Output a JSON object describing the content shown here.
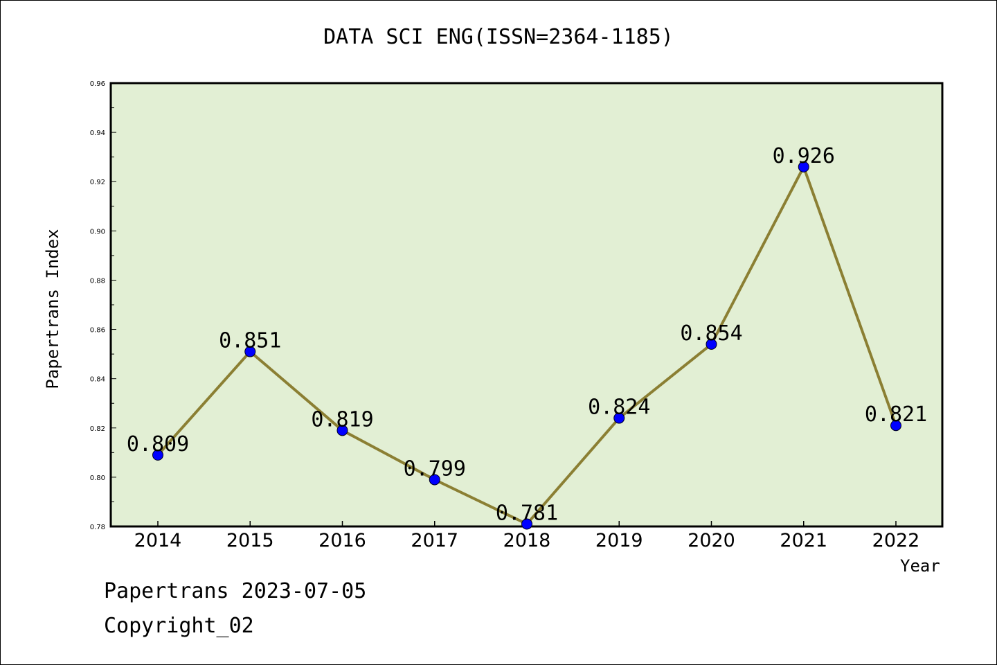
{
  "chart_data": {
    "type": "line",
    "title": "DATA SCI ENG(ISSN=2364-1185)",
    "xlabel": "Year",
    "ylabel": "Papertrans Index",
    "categories": [
      "2014",
      "2015",
      "2016",
      "2017",
      "2018",
      "2019",
      "2020",
      "2021",
      "2022"
    ],
    "series": [
      {
        "values": [
          0.809,
          0.851,
          0.819,
          0.799,
          0.781,
          0.824,
          0.854,
          0.926,
          0.821
        ],
        "data_labels": [
          "0.809",
          "0.851",
          "0.819",
          "0.799",
          "0.781",
          "0.824",
          "0.854",
          "0.926",
          "0.821"
        ]
      }
    ],
    "ylim": [
      0.78,
      0.96
    ],
    "yticks": [
      "0.78",
      "0.80",
      "0.82",
      "0.84",
      "0.86",
      "0.88",
      "0.90",
      "0.92",
      "0.94",
      "0.96"
    ],
    "grid": false,
    "colors": {
      "plot_background": "#e2efd4",
      "line": "#8b7f33",
      "marker": "#0000ff"
    }
  },
  "footer": {
    "date_text": "Papertrans 2023-07-05",
    "copyright_text": "Copyright_02"
  }
}
